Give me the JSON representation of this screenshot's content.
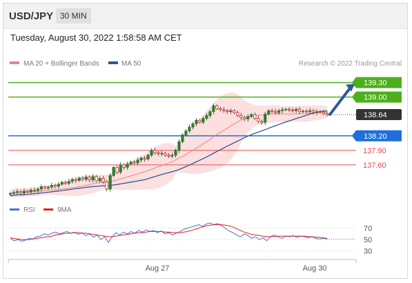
{
  "header": {
    "symbol": "USD/JPY",
    "timeframe": "30 MIN"
  },
  "datetime": "Tuesday, August 30, 2022 1:58:58 AM CET",
  "copyright": "Research © 2022 Trading Central",
  "colors": {
    "support": "#e8474c",
    "resistance": "#4caf1c",
    "pivot": "#1e6fd9",
    "price_tag": "#333333",
    "ma20": "#f08080",
    "ma50": "#2b5797",
    "bands": "#fcd9d9",
    "candle_up": "#2e7d32",
    "candle_down": "#c62828",
    "rsi": "#4a6fd0",
    "rsi_ma": "#e02020"
  },
  "chart_data": [
    {
      "type": "candlestick",
      "title": "",
      "legend": [
        "MA 20 + Bollinger Bands",
        "MA 50"
      ],
      "legend_position": "top-left",
      "ylim": [
        136.9,
        139.58
      ],
      "price_levels": [
        {
          "label": "139.30",
          "value": 139.3,
          "kind": "resistance"
        },
        {
          "label": "139.00",
          "value": 139.0,
          "kind": "resistance"
        },
        {
          "label": "138.64",
          "value": 138.64,
          "kind": "last_price"
        },
        {
          "label": "138.20",
          "value": 138.2,
          "kind": "pivot"
        },
        {
          "label": "137.90",
          "value": 137.9,
          "kind": "support"
        },
        {
          "label": "137.60",
          "value": 137.6,
          "kind": "support"
        }
      ],
      "x_tick_labels": [
        "Aug 27",
        "Aug 30"
      ],
      "close": [
        137.01,
        137.03,
        137.05,
        137.02,
        137.06,
        137.04,
        137.08,
        137.07,
        137.1,
        137.15,
        137.12,
        137.14,
        137.18,
        137.16,
        137.2,
        137.24,
        137.22,
        137.26,
        137.3,
        137.28,
        137.33,
        137.3,
        137.35,
        137.29,
        137.36,
        137.27,
        137.32,
        137.25,
        137.1,
        137.38,
        137.55,
        137.45,
        137.6,
        137.55,
        137.62,
        137.66,
        137.64,
        137.7,
        137.74,
        137.72,
        137.8,
        137.9,
        137.85,
        137.83,
        137.84,
        137.8,
        137.78,
        137.8,
        137.9,
        138.08,
        138.22,
        138.3,
        138.38,
        138.45,
        138.52,
        138.48,
        138.56,
        138.62,
        138.7,
        138.82,
        138.76,
        138.74,
        138.72,
        138.7,
        138.72,
        138.68,
        138.62,
        138.58,
        138.55,
        138.6,
        138.64,
        138.56,
        138.5,
        138.48,
        138.65,
        138.72,
        138.7,
        138.68,
        138.72,
        138.74,
        138.75,
        138.73,
        138.72,
        138.75,
        138.7,
        138.71,
        138.7,
        138.72,
        138.68,
        138.7,
        138.69,
        138.66,
        138.64
      ],
      "ma20_end": 138.68,
      "ma50_end": 138.6,
      "arrow": {
        "from": 138.64,
        "to": 139.3,
        "direction": "up"
      }
    },
    {
      "type": "line",
      "title": "",
      "legend": [
        "RSI",
        "9MA"
      ],
      "legend_position": "top-left",
      "ylim": [
        20,
        85
      ],
      "yticks": [
        "70",
        "50",
        "30"
      ],
      "series": [
        {
          "name": "RSI",
          "values": [
            52,
            48,
            50,
            47,
            49,
            52,
            51,
            55,
            56,
            60,
            58,
            61,
            63,
            60,
            62,
            64,
            61,
            63,
            59,
            62,
            57,
            60,
            54,
            58,
            50,
            55,
            45,
            55,
            62,
            58,
            63,
            60,
            64,
            61,
            66,
            63,
            67,
            64,
            66,
            62,
            65,
            60,
            62,
            58,
            61,
            64,
            68,
            70,
            72,
            74,
            76,
            73,
            77,
            79,
            76,
            78,
            74,
            70,
            65,
            62,
            58,
            55,
            60,
            57,
            52,
            55,
            50,
            53,
            48,
            55,
            58,
            55,
            52,
            56,
            55,
            57,
            54,
            56,
            55,
            53,
            55,
            52,
            51,
            52,
            51
          ]
        },
        {
          "name": "9MA",
          "values": [
            53,
            52,
            51,
            50,
            50,
            50,
            51,
            52,
            53,
            54,
            55,
            56,
            58,
            59,
            60,
            61,
            61,
            62,
            62,
            61,
            61,
            60,
            59,
            58,
            57,
            56,
            55,
            55,
            56,
            57,
            58,
            59,
            60,
            61,
            62,
            62,
            63,
            64,
            64,
            64,
            64,
            63,
            63,
            62,
            62,
            62,
            63,
            64,
            66,
            68,
            70,
            72,
            74,
            75,
            76,
            76,
            76,
            75,
            74,
            72,
            69,
            66,
            63,
            61,
            59,
            58,
            57,
            56,
            55,
            55,
            55,
            56,
            56,
            56,
            56,
            56,
            56,
            56,
            56,
            55,
            55,
            54,
            54,
            53,
            52
          ]
        }
      ]
    }
  ]
}
